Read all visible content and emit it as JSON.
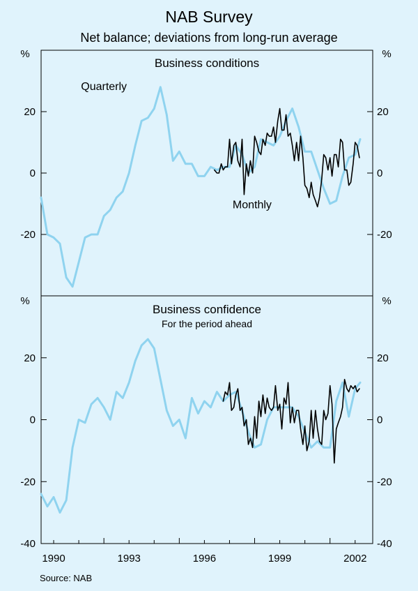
{
  "chart_data": {
    "title": "NAB Survey",
    "subtitle": "Net balance; deviations from long-run average",
    "source": "Source: NAB",
    "x_ticks": [
      "1990",
      "1993",
      "1996",
      "1999",
      "2002"
    ],
    "xlim": [
      1989.5,
      2002.7
    ],
    "colors": {
      "quarterly": "#8fd3ef",
      "monthly": "#000000",
      "axis": "#000000",
      "background": "#e0f3fc"
    },
    "panels": [
      {
        "type": "line",
        "title": "Business conditions",
        "note": "",
        "unit_left": "%",
        "unit_right": "%",
        "y_ticks": [
          "20",
          "0",
          "-20"
        ],
        "y_tick_values": [
          20,
          0,
          -20
        ],
        "ylim": [
          -40,
          40
        ],
        "annotations": [
          {
            "text": "Quarterly",
            "x": 1992.0,
            "y": 27,
            "series": "Quarterly"
          },
          {
            "text": "Monthly",
            "x": 1997.9,
            "y": -11.5,
            "series": "Monthly"
          }
        ],
        "series": [
          {
            "name": "Quarterly",
            "color": "#8fd3ef",
            "x": [
              1989.5,
              1989.75,
              1990.0,
              1990.25,
              1990.5,
              1990.75,
              1991.0,
              1991.25,
              1991.5,
              1991.75,
              1992.0,
              1992.25,
              1992.5,
              1992.75,
              1993.0,
              1993.25,
              1993.5,
              1993.75,
              1994.0,
              1994.25,
              1994.5,
              1994.75,
              1995.0,
              1995.25,
              1995.5,
              1995.75,
              1996.0,
              1996.25,
              1996.5,
              1996.75,
              1997.0,
              1997.25,
              1997.5,
              1997.75,
              1998.0,
              1998.25,
              1998.5,
              1998.75,
              1999.0,
              1999.25,
              1999.5,
              1999.75,
              2000.0,
              2000.25,
              2000.5,
              2000.75,
              2001.0,
              2001.25,
              2001.5,
              2001.75,
              2002.0,
              2002.2
            ],
            "values": [
              -8,
              -20,
              -21,
              -23,
              -34,
              -37,
              -29,
              -21,
              -20,
              -20,
              -14,
              -12,
              -8,
              -6,
              0,
              9,
              17,
              18,
              21,
              28,
              19,
              4,
              7,
              3,
              3,
              -1,
              -1,
              2,
              1,
              2,
              2,
              9,
              6,
              0,
              2,
              11,
              10,
              9,
              12,
              17,
              21,
              15,
              7,
              7,
              1,
              -5,
              -10,
              -9,
              -1,
              5,
              6,
              11
            ]
          },
          {
            "name": "Monthly",
            "color": "#000000",
            "x": [
              1996.4,
              1996.5,
              1996.58,
              1996.67,
              1996.75,
              1996.83,
              1996.92,
              1997.0,
              1997.08,
              1997.17,
              1997.25,
              1997.33,
              1997.42,
              1997.5,
              1997.58,
              1997.67,
              1997.75,
              1997.83,
              1997.92,
              1998.0,
              1998.08,
              1998.17,
              1998.25,
              1998.33,
              1998.42,
              1998.5,
              1998.58,
              1998.67,
              1998.75,
              1998.83,
              1998.92,
              1999.0,
              1999.08,
              1999.17,
              1999.25,
              1999.33,
              1999.42,
              1999.5,
              1999.58,
              1999.67,
              1999.75,
              1999.83,
              1999.92,
              2000.0,
              2000.08,
              2000.17,
              2000.25,
              2000.33,
              2000.42,
              2000.5,
              2000.58,
              2000.67,
              2000.75,
              2000.83,
              2000.92,
              2001.0,
              2001.08,
              2001.17,
              2001.25,
              2001.33,
              2001.42,
              2001.5,
              2001.58,
              2001.67,
              2001.75,
              2001.83,
              2001.92,
              2002.0,
              2002.08,
              2002.17
            ],
            "values": [
              1,
              0,
              0,
              3,
              1,
              2,
              2,
              11,
              3,
              9,
              10,
              4,
              2,
              11,
              -7,
              3,
              -1,
              4,
              0,
              12,
              10,
              7,
              6,
              11,
              9,
              13,
              12,
              12,
              15,
              10,
              17,
              21,
              14,
              14,
              19,
              12,
              13,
              9,
              4,
              10,
              4,
              12,
              5,
              -4,
              -5,
              -8,
              -3,
              -7,
              -9,
              -11,
              -8,
              -2,
              6,
              5,
              1,
              5,
              -1,
              6,
              6,
              2,
              11,
              10,
              1,
              1,
              -4,
              -3,
              3,
              10,
              9,
              5
            ],
            "note": "monthly points drawn as one connected line"
          }
        ]
      },
      {
        "type": "line",
        "title": "Business confidence",
        "note": "For the period ahead",
        "unit_left": "%",
        "unit_right": "%",
        "y_ticks": [
          "20",
          "0",
          "-20",
          "-40"
        ],
        "y_tick_values": [
          20,
          0,
          -20,
          -40
        ],
        "ylim": [
          -40,
          40
        ],
        "annotations": [],
        "series": [
          {
            "name": "Quarterly",
            "color": "#8fd3ef",
            "x": [
              1989.5,
              1989.75,
              1990.0,
              1990.25,
              1990.5,
              1990.75,
              1991.0,
              1991.25,
              1991.5,
              1991.75,
              1992.0,
              1992.25,
              1992.5,
              1992.75,
              1993.0,
              1993.25,
              1993.5,
              1993.75,
              1994.0,
              1994.25,
              1994.5,
              1994.75,
              1995.0,
              1995.25,
              1995.5,
              1995.75,
              1996.0,
              1996.25,
              1996.5,
              1996.75,
              1997.0,
              1997.25,
              1997.5,
              1997.75,
              1998.0,
              1998.25,
              1998.5,
              1998.75,
              1999.0,
              1999.25,
              1999.5,
              1999.75,
              2000.0,
              2000.25,
              2000.5,
              2000.75,
              2001.0,
              2001.25,
              2001.5,
              2001.75,
              2002.0,
              2002.2
            ],
            "values": [
              -24,
              -28,
              -25,
              -30,
              -26,
              -9,
              0,
              -1,
              5,
              7,
              4,
              0,
              9,
              7,
              12,
              19,
              24,
              26,
              23,
              13,
              3,
              -2,
              0,
              -6,
              7,
              2,
              6,
              4,
              9,
              6,
              8,
              9,
              3,
              -4,
              -9,
              -8,
              0,
              4,
              4,
              4,
              4,
              1,
              -4,
              -9,
              -7,
              -9,
              -9,
              6,
              12,
              1,
              10,
              12
            ]
          },
          {
            "name": "Monthly",
            "color": "#000000",
            "x": [
              1996.75,
              1996.83,
              1996.92,
              1997.0,
              1997.08,
              1997.17,
              1997.25,
              1997.33,
              1997.42,
              1997.5,
              1997.58,
              1997.67,
              1997.75,
              1997.83,
              1997.92,
              1998.0,
              1998.08,
              1998.17,
              1998.25,
              1998.33,
              1998.42,
              1998.5,
              1998.58,
              1998.67,
              1998.75,
              1998.83,
              1998.92,
              1999.0,
              1999.08,
              1999.17,
              1999.25,
              1999.33,
              1999.42,
              1999.5,
              1999.58,
              1999.67,
              1999.75,
              1999.83,
              1999.92,
              2000.0,
              2000.08,
              2000.17,
              2000.25,
              2000.33,
              2000.42,
              2000.5,
              2000.58,
              2000.67,
              2000.75,
              2000.83,
              2000.92,
              2001.0,
              2001.08,
              2001.17,
              2001.25,
              2001.33,
              2001.42,
              2001.5,
              2001.58,
              2001.67,
              2001.75,
              2001.83,
              2001.92,
              2002.0,
              2002.08,
              2002.17
            ],
            "values": [
              6,
              9,
              8,
              12,
              3,
              4,
              8,
              10,
              3,
              4,
              -2,
              0,
              -8,
              -6,
              -9,
              1,
              -6,
              6,
              1,
              8,
              2,
              7,
              4,
              3,
              4,
              11,
              3,
              5,
              -3,
              7,
              5,
              12,
              -1,
              4,
              -1,
              3,
              3,
              -3,
              -8,
              -2,
              -10,
              -7,
              3,
              -6,
              3,
              -3,
              -7,
              -8,
              3,
              0,
              2,
              11,
              5,
              -14,
              -3,
              -1,
              1,
              4,
              13,
              10,
              9,
              11,
              10,
              11,
              9,
              10
            ],
            "note": "monthly points drawn as one connected line"
          }
        ]
      }
    ]
  }
}
